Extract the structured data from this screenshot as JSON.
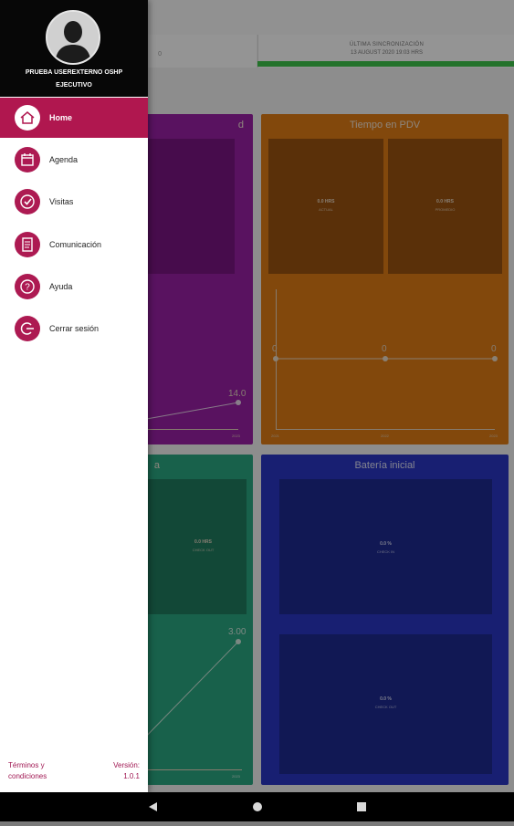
{
  "sync": {
    "title": "ÚLTIMA SINCRONIZACIÓN",
    "datetime": "13 AUGUST 2020 19:03 HRS",
    "left_text": "0"
  },
  "cards": {
    "purple": {
      "title": "d",
      "point_label": "14.0",
      "tick": "2023"
    },
    "orange": {
      "title": "Tiempo en PDV",
      "tile1_value": "0.0 HRS",
      "tile1_sub": "ACTUAL",
      "tile2_value": "0.0 HRS",
      "tile2_sub": "PROMEDIO",
      "point_labels": [
        "0",
        "0",
        "0"
      ],
      "ticks": [
        "2021",
        "2022",
        "2023"
      ]
    },
    "teal": {
      "title": "a",
      "tile_value": "0.0 HRS",
      "tile_sub": "CHECK OUT",
      "point_label": "3.00",
      "tick": "2023"
    },
    "blue": {
      "title": "Batería inicial",
      "tile1_value": "0.0 %",
      "tile1_sub": "CHECK IN",
      "tile2_value": "0.0 %",
      "tile2_sub": "CHECK OUT"
    }
  },
  "drawer": {
    "user_name": "PRUEBA USEREXTERNO OSHP",
    "user_role": "EJECUTIVO",
    "menu": [
      {
        "label": "Home",
        "icon": "home-icon",
        "active": true
      },
      {
        "label": "Agenda",
        "icon": "calendar-icon",
        "active": false
      },
      {
        "label": "Visitas",
        "icon": "check-circle-icon",
        "active": false
      },
      {
        "label": "Comunicación",
        "icon": "document-icon",
        "active": false
      },
      {
        "label": "Ayuda",
        "icon": "help-icon",
        "active": false
      },
      {
        "label": "Cerrar sesión",
        "icon": "logout-icon",
        "active": false
      }
    ],
    "footer_terms_line1": "Términos y",
    "footer_terms_line2": "condiciones",
    "footer_version_label": "Versión:",
    "footer_version_value": "1.0.1"
  },
  "colors": {
    "accent": "#b0174f",
    "purple_card": "#9a1fa6",
    "orange_card": "#e07d16",
    "teal_card": "#2aa882",
    "blue_card": "#2a36c4",
    "sync_bar": "#3fc44a"
  }
}
